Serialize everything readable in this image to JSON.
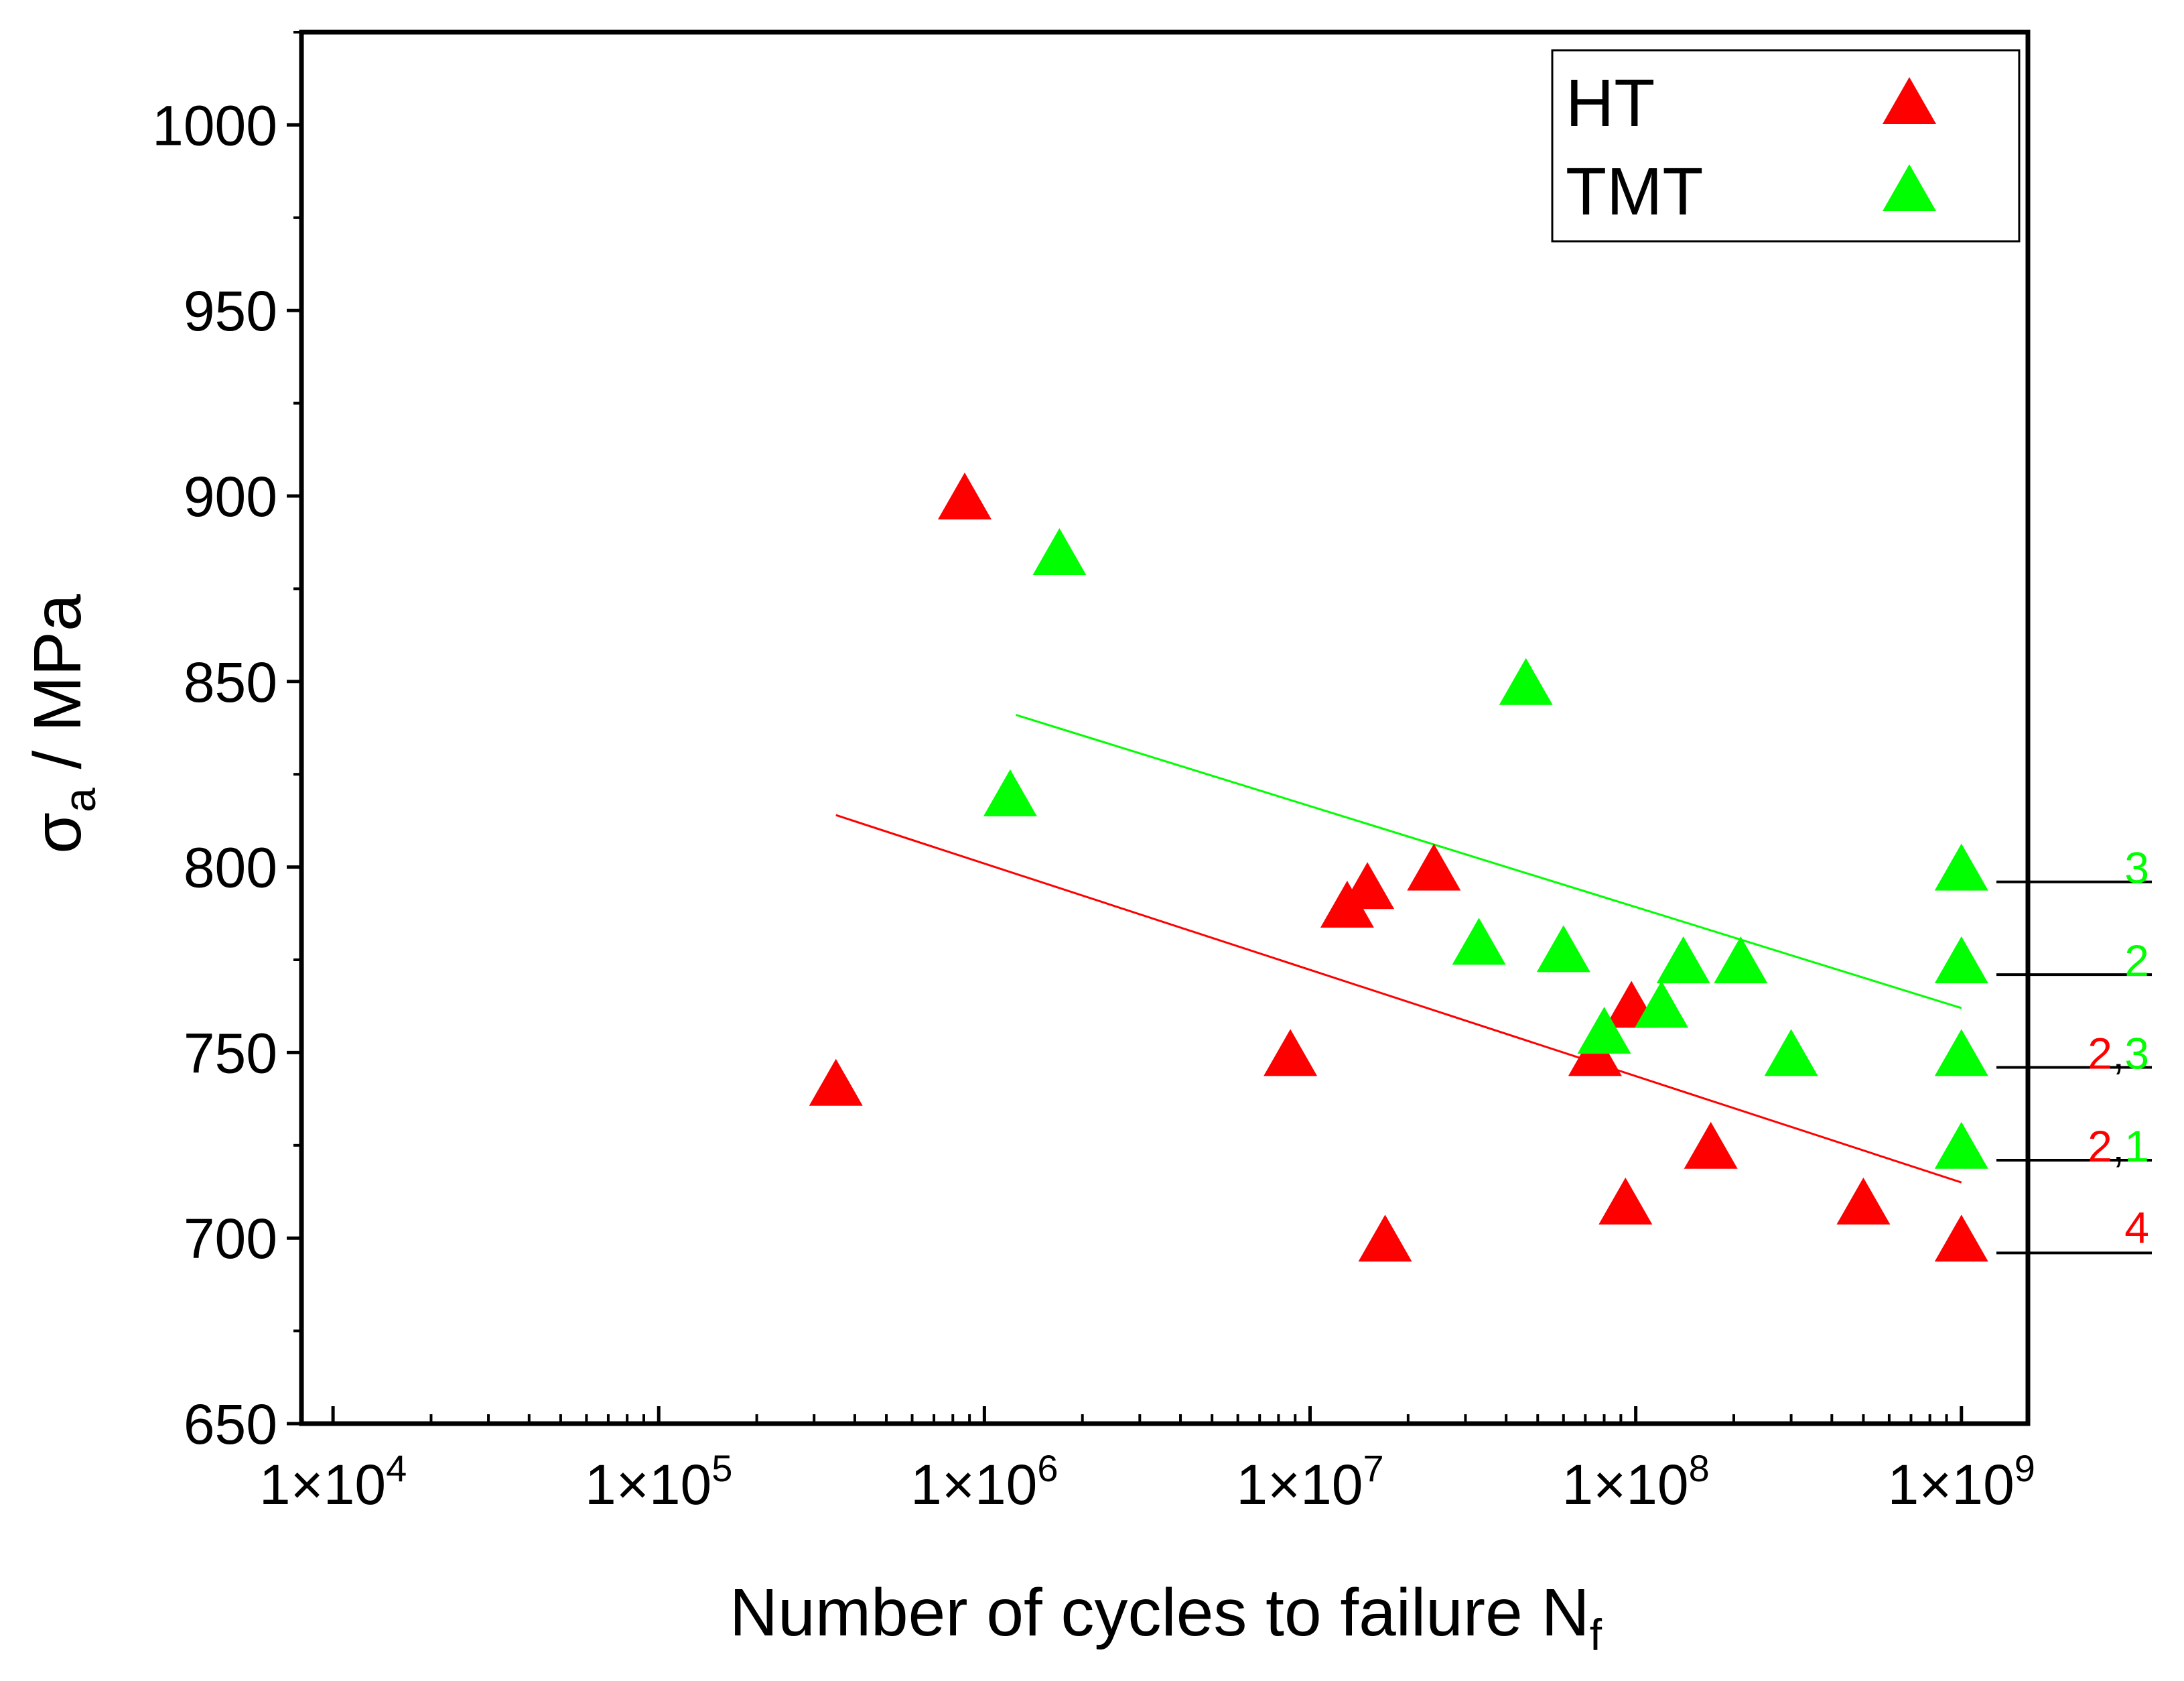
{
  "chart_data": {
    "type": "scatter",
    "title": "",
    "xlabel": "Number of cycles to failure N",
    "xlabel_subscript": "f",
    "ylabel_symbol": "σ",
    "ylabel_subscript": "a",
    "ylabel_rest": " / MPa",
    "xscale": "log",
    "xlim": [
      8000,
      1600000000
    ],
    "ylim": [
      650,
      1025
    ],
    "xticks": [
      {
        "value": 10000,
        "mantissa": "1×10",
        "exp": "4"
      },
      {
        "value": 100000,
        "mantissa": "1×10",
        "exp": "5"
      },
      {
        "value": 1000000,
        "mantissa": "1×10",
        "exp": "6"
      },
      {
        "value": 10000000,
        "mantissa": "1×10",
        "exp": "7"
      },
      {
        "value": 100000000,
        "mantissa": "1×10",
        "exp": "8"
      },
      {
        "value": 1000000000,
        "mantissa": "1×10",
        "exp": "9"
      }
    ],
    "yticks": [
      {
        "value": 650,
        "label": "650"
      },
      {
        "value": 700,
        "label": "700"
      },
      {
        "value": 750,
        "label": "750"
      },
      {
        "value": 800,
        "label": "800"
      },
      {
        "value": 850,
        "label": "850"
      },
      {
        "value": 900,
        "label": "900"
      },
      {
        "value": 950,
        "label": "950"
      },
      {
        "value": 1000,
        "label": "1000"
      }
    ],
    "legend": {
      "position": "top-right"
    },
    "series": [
      {
        "name": "HT",
        "color": "#ff0000",
        "marker": "triangle",
        "points": [
          [
            350000,
            742
          ],
          [
            870000,
            900
          ],
          [
            8700000,
            750
          ],
          [
            13000000,
            790
          ],
          [
            15000000,
            795
          ],
          [
            17000000,
            700
          ],
          [
            24000000,
            800
          ],
          [
            75000000,
            750
          ],
          [
            93000000,
            710
          ],
          [
            97000000,
            763
          ],
          [
            170000000,
            725
          ],
          [
            500000000,
            710
          ],
          [
            1000000000,
            700
          ]
        ]
      },
      {
        "name": "TMT",
        "color": "#00ff00",
        "marker": "triangle",
        "points": [
          [
            1200000,
            820
          ],
          [
            1700000,
            885
          ],
          [
            33000000,
            780
          ],
          [
            46000000,
            850
          ],
          [
            60000000,
            778
          ],
          [
            80000000,
            756
          ],
          [
            120000000,
            763
          ],
          [
            140000000,
            775
          ],
          [
            210000000,
            775
          ],
          [
            300000000,
            750
          ],
          [
            1000000000,
            800
          ],
          [
            1000000000,
            775
          ],
          [
            1000000000,
            750
          ],
          [
            1000000000,
            725
          ]
        ]
      }
    ],
    "fit_lines": [
      {
        "name": "HT fit",
        "color": "#ff0000",
        "from": [
          350000,
          814
        ],
        "to": [
          1000000000,
          715
        ]
      },
      {
        "name": "TMT fit",
        "color": "#00ff00",
        "from": [
          1250000,
          841
        ],
        "to": [
          1000000000,
          762
        ]
      }
    ],
    "runout_annotations": [
      {
        "y": 796,
        "label_y": 800,
        "parts": [
          {
            "text": "3",
            "color": "#00ff00"
          }
        ]
      },
      {
        "y": 771,
        "label_y": 775,
        "parts": [
          {
            "text": "2",
            "color": "#00ff00"
          }
        ]
      },
      {
        "y": 746,
        "label_y": 750,
        "parts": [
          {
            "text": "2",
            "color": "#ff0000"
          },
          {
            "text": ",",
            "color": "#000000"
          },
          {
            "text": "3",
            "color": "#00ff00"
          }
        ]
      },
      {
        "y": 721,
        "label_y": 725,
        "parts": [
          {
            "text": "2",
            "color": "#ff0000"
          },
          {
            "text": ",",
            "color": "#000000"
          },
          {
            "text": "1",
            "color": "#00ff00"
          }
        ]
      },
      {
        "y": 696,
        "label_y": 703,
        "parts": [
          {
            "text": "4",
            "color": "#ff0000"
          }
        ]
      }
    ]
  }
}
